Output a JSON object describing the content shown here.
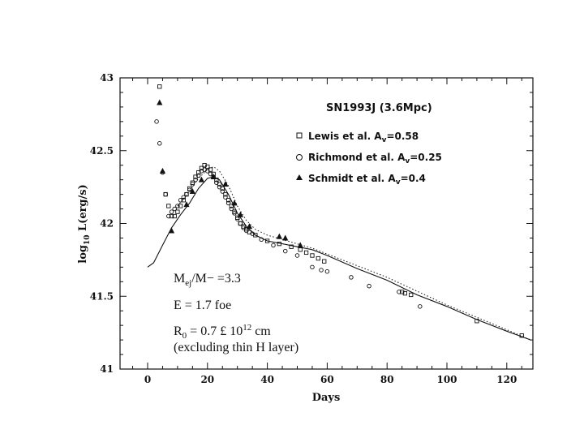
{
  "chart_data": {
    "type": "scatter",
    "title": "SN1993J (3.6Mpc)",
    "xlabel": "Days",
    "ylabel": "log10 L(erg/s)",
    "ylabel_main": "log",
    "ylabel_sub": "10",
    "ylabel_rest": " L(erg/s)",
    "xlim": [
      -8,
      130
    ],
    "ylim": [
      41,
      43
    ],
    "xticks": [
      0,
      20,
      40,
      60,
      80,
      100,
      120
    ],
    "xtick_labels": [
      "0",
      "20",
      "40",
      "60",
      "80",
      "100",
      "120"
    ],
    "yticks": [
      41,
      41.5,
      42,
      42.5,
      43
    ],
    "ytick_labels": [
      "41",
      "41.5",
      "42",
      "42.5",
      "43"
    ],
    "legend": [
      {
        "marker": "square",
        "text": "Lewis et al. A",
        "sub": "v",
        "tail": "=0.58"
      },
      {
        "marker": "circle",
        "text": "Richmond et al. A",
        "sub": "v",
        "tail": "=0.25"
      },
      {
        "marker": "triangle",
        "text": "Schmidt et al. A",
        "sub": "v",
        "tail": "=0.4"
      }
    ],
    "annotations": {
      "mass_main": "M",
      "mass_sub": "ej",
      "mass_tail": "/M− =3.3",
      "energy": "E = 1.7 foe",
      "radius_main": "R",
      "radius_sub": "0",
      "radius_mid": " = 0.7 £ 10",
      "radius_sup": "12",
      "radius_tail": " cm",
      "note": "(excluding thin H layer)"
    },
    "series": [
      {
        "name": "Lewis et al. Av=0.58",
        "marker": "square",
        "x": [
          4,
          6,
          7,
          8,
          9,
          10,
          11,
          12,
          13,
          14,
          15,
          16,
          17,
          18,
          19,
          20,
          21,
          22,
          23,
          24,
          25,
          26,
          27,
          28,
          29,
          30,
          31,
          32,
          33,
          34,
          36,
          40,
          44,
          48,
          51,
          53,
          55,
          57,
          59,
          85,
          86,
          88,
          110,
          125
        ],
        "y": [
          42.94,
          42.2,
          42.12,
          42.05,
          42.05,
          42.08,
          42.12,
          42.16,
          42.2,
          42.24,
          42.28,
          42.32,
          42.35,
          42.38,
          42.4,
          42.39,
          42.37,
          42.34,
          42.3,
          42.27,
          42.24,
          42.2,
          42.16,
          42.12,
          42.08,
          42.04,
          42.0,
          41.98,
          41.96,
          41.94,
          41.92,
          41.88,
          41.86,
          41.84,
          41.82,
          41.8,
          41.78,
          41.76,
          41.74,
          41.53,
          41.52,
          41.51,
          41.33,
          41.23
        ]
      },
      {
        "name": "Richmond et al. Av=0.25",
        "marker": "circle",
        "x": [
          3,
          4,
          5,
          6,
          7,
          8,
          9,
          10,
          11,
          12,
          13,
          14,
          15,
          16,
          17,
          18,
          19,
          20,
          21,
          22,
          23,
          24,
          25,
          26,
          27,
          28,
          29,
          30,
          31,
          32,
          33,
          35,
          38,
          42,
          46,
          50,
          55,
          58,
          60,
          68,
          74,
          84,
          91
        ],
        "y": [
          42.7,
          42.55,
          42.35,
          42.2,
          42.05,
          42.08,
          42.1,
          42.12,
          42.16,
          42.18,
          42.2,
          42.23,
          42.27,
          42.3,
          42.33,
          42.36,
          42.37,
          42.36,
          42.34,
          42.32,
          42.28,
          42.25,
          42.22,
          42.18,
          42.14,
          42.1,
          42.07,
          42.03,
          42.0,
          41.97,
          41.95,
          41.93,
          41.89,
          41.85,
          41.81,
          41.78,
          41.7,
          41.68,
          41.67,
          41.63,
          41.57,
          41.53,
          41.43
        ]
      },
      {
        "name": "Schmidt et al. Av=0.4",
        "marker": "triangle",
        "x": [
          4,
          5,
          8,
          13,
          15,
          18,
          22,
          26,
          29,
          31,
          34,
          44,
          46,
          51
        ],
        "y": [
          42.83,
          42.36,
          41.95,
          42.13,
          42.22,
          42.3,
          42.32,
          42.27,
          42.14,
          42.06,
          41.98,
          41.91,
          41.9,
          41.85
        ]
      }
    ],
    "model_solid": {
      "x": [
        0,
        2,
        5,
        8,
        11,
        14,
        17,
        20,
        22,
        24,
        27,
        30,
        33,
        36,
        40,
        45,
        50,
        55,
        60,
        70,
        80,
        90,
        100,
        110,
        120,
        128
      ],
      "y": [
        41.7,
        41.73,
        41.85,
        41.97,
        42.06,
        42.14,
        42.24,
        42.31,
        42.32,
        42.3,
        42.2,
        42.07,
        41.98,
        41.92,
        41.88,
        41.86,
        41.84,
        41.82,
        41.78,
        41.69,
        41.61,
        41.51,
        41.43,
        41.34,
        41.26,
        41.2
      ]
    },
    "model_dotted": {
      "x": [
        10,
        14,
        17,
        20,
        22,
        24,
        27,
        30,
        33,
        36,
        40,
        45,
        50,
        55,
        60,
        80,
        100,
        120,
        128
      ],
      "y": [
        42.12,
        42.22,
        42.31,
        42.37,
        42.39,
        42.36,
        42.26,
        42.12,
        42.02,
        41.96,
        41.92,
        41.89,
        41.86,
        41.83,
        41.79,
        41.63,
        41.44,
        41.27,
        41.2
      ]
    }
  }
}
